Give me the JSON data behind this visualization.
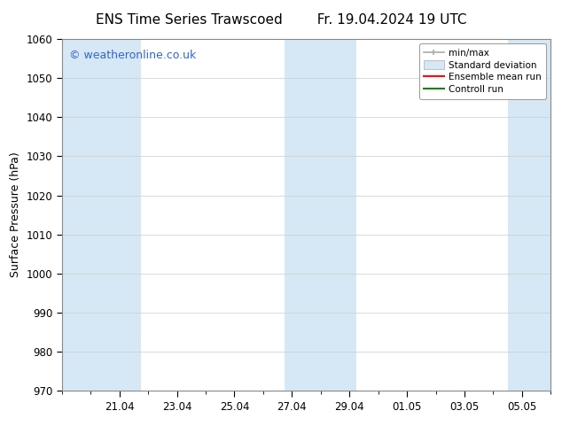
{
  "title_left": "ENS Time Series Trawscoed",
  "title_right": "Fr. 19.04.2024 19 UTC",
  "ylabel": "Surface Pressure (hPa)",
  "ylim": [
    970,
    1060
  ],
  "yticks": [
    970,
    980,
    990,
    1000,
    1010,
    1020,
    1030,
    1040,
    1050,
    1060
  ],
  "watermark": "© weatheronline.co.uk",
  "watermark_color": "#3366cc",
  "background_color": "#ffffff",
  "plot_bg_color": "#ffffff",
  "shaded_band_color": "#d6e8f5",
  "x_tick_labels": [
    "21.04",
    "23.04",
    "25.04",
    "27.04",
    "29.04",
    "01.05",
    "03.05",
    "05.05"
  ],
  "x_tick_positions": [
    2,
    4,
    6,
    8,
    10,
    12,
    14,
    16
  ],
  "xlim_left": 0.0,
  "xlim_right": 17.0,
  "shaded_regions": [
    {
      "xmin": 0.0,
      "xmax": 2.75
    },
    {
      "xmin": 7.75,
      "xmax": 10.25
    },
    {
      "xmin": 15.5,
      "xmax": 17.0
    }
  ],
  "legend_entries": [
    "min/max",
    "Standard deviation",
    "Ensemble mean run",
    "Controll run"
  ],
  "legend_colors": [
    "#aaaaaa",
    "#d6e8f5",
    "#ff0000",
    "#008000"
  ],
  "title_fontsize": 11,
  "label_fontsize": 9,
  "tick_fontsize": 8.5,
  "watermark_fontsize": 9,
  "grid_color": "#cccccc"
}
